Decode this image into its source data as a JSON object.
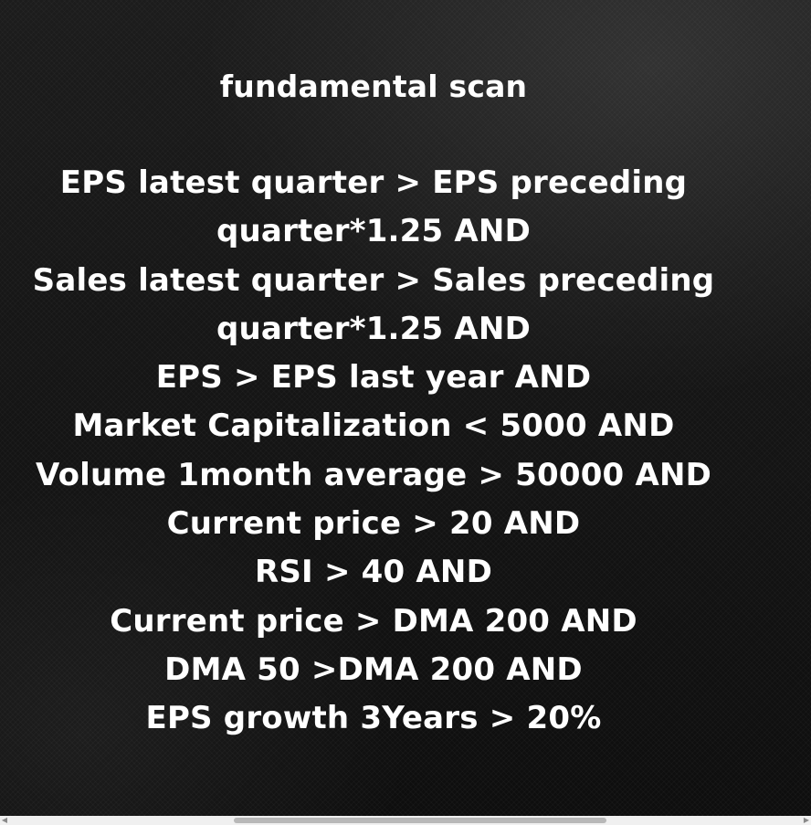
{
  "card": {
    "title": "fundamental scan",
    "lines": [
      "EPS latest quarter  > EPS preceding",
      "quarter*1.25 AND",
      "Sales latest quarter > Sales preceding",
      "quarter*1.25 AND",
      "EPS > EPS last year AND",
      "Market Capitalization < 5000 AND",
      "Volume 1month average > 50000 AND",
      "Current price > 20 AND",
      "RSI > 40 AND",
      "Current price  > DMA 200 AND",
      "DMA 50 >DMA 200 AND",
      "EPS growth 3Years > 20%"
    ]
  },
  "scrollbar": {
    "left_arrow_icon": "scroll-left-arrow-icon",
    "right_arrow_icon": "scroll-right-arrow-icon"
  }
}
